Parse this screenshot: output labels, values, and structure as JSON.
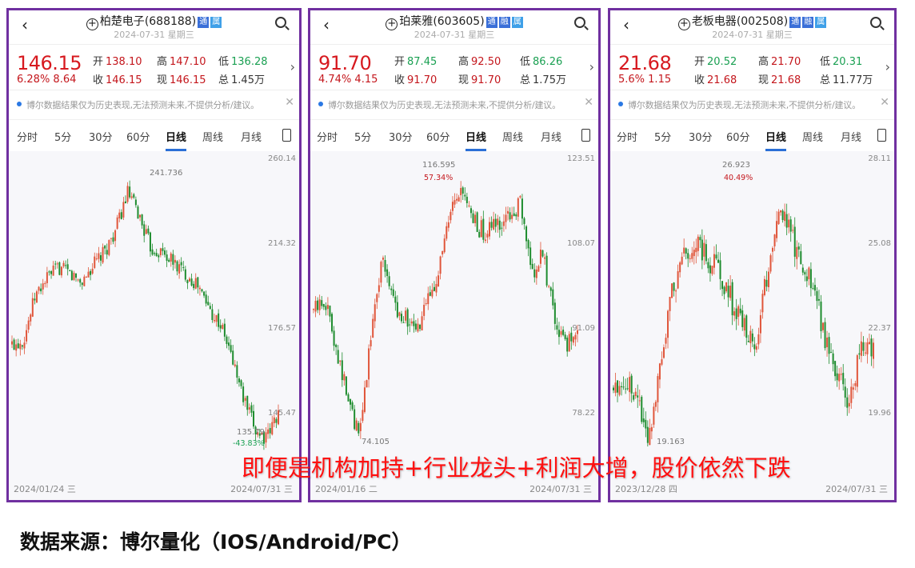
{
  "tabs": [
    "分时",
    "5分",
    "30分",
    "60分",
    "日线",
    "周线",
    "月线"
  ],
  "active_tab": "日线",
  "labels": {
    "open": "开",
    "high": "高",
    "low": "低",
    "close": "收",
    "now": "现",
    "vol": "总"
  },
  "notice": "博尔数据结果仅为历史表现,无法预测未来,不提供分析/建议。",
  "colors": {
    "up": "#e0553a",
    "down": "#1e8c2e",
    "price": "#d7191f",
    "border": "#7030a0"
  },
  "panels": [
    {
      "name": "柏楚电子",
      "code": "(688188)",
      "badges": [
        "通",
        "属"
      ],
      "date": "2024-07-31",
      "weekday": "星期三",
      "price": "146.15",
      "change": "6.28% 8.64",
      "open": "138.10",
      "open_color": "red",
      "high": "147.10",
      "low": "136.28",
      "close": "146.15",
      "now": "146.15",
      "vol": "1.45万",
      "ticks": [
        "260.14",
        "214.32",
        "176.57",
        "145.47"
      ],
      "date_start": "2024/01/24 三",
      "date_end": "2024/07/31 三",
      "high_mark": "241.736",
      "high_pct": "",
      "low_mark": "135.79",
      "low_pct": "-43.83%",
      "closes": [
        170,
        172,
        190,
        198,
        203,
        200,
        196,
        204,
        210,
        222,
        241,
        228,
        212,
        210,
        205,
        200,
        195,
        185,
        178,
        165,
        150,
        140,
        137,
        146
      ]
    },
    {
      "name": "珀莱雅",
      "code": "(603605)",
      "badges": [
        "通",
        "融",
        "属"
      ],
      "date": "2024-07-31",
      "weekday": "星期三",
      "price": "91.70",
      "change": "4.74% 4.15",
      "open": "87.45",
      "open_color": "green",
      "high": "92.50",
      "low": "86.26",
      "close": "91.70",
      "now": "91.70",
      "vol": "1.75万",
      "ticks": [
        "123.51",
        "108.07",
        "91.09",
        "78.22"
      ],
      "date_start": "2024/01/16 二",
      "date_end": "2024/07/31 三",
      "high_mark": "116.595",
      "high_pct": "57.34%",
      "low_mark": "74.105",
      "low_pct": "",
      "closes": [
        94,
        96,
        88,
        80,
        74.5,
        90,
        104,
        95,
        93,
        90,
        96,
        102,
        112,
        116,
        110,
        108,
        110,
        111,
        114,
        100,
        104,
        92,
        88,
        91.7
      ]
    },
    {
      "name": "老板电器",
      "code": "(002508)",
      "badges": [
        "通",
        "融",
        "属"
      ],
      "date": "2024-07-31",
      "weekday": "星期三",
      "price": "21.68",
      "change": "5.6% 1.15",
      "open": "20.52",
      "open_color": "green",
      "high": "21.70",
      "low": "20.31",
      "close": "21.68",
      "now": "21.68",
      "vol": "11.77万",
      "ticks": [
        "28.11",
        "25.08",
        "22.37",
        "19.96"
      ],
      "date_start": "2023/12/28 四",
      "date_end": "2024/07/31 三",
      "high_mark": "26.923",
      "high_pct": "40.49%",
      "low_mark": "19.163",
      "low_pct": "",
      "closes": [
        20.6,
        20.9,
        20.5,
        19.3,
        21.5,
        23.5,
        24.7,
        25.0,
        24.6,
        24.2,
        23.2,
        22.4,
        21.8,
        24.0,
        26.5,
        25.3,
        24.5,
        23.5,
        22.0,
        21.0,
        20.3,
        21.8,
        21.68
      ]
    }
  ],
  "overlay_text": "即便是机构加持+行业龙头+利润大增，股价依然下跌",
  "footer": "数据来源：博尔量化（IOS/Android/PC）"
}
